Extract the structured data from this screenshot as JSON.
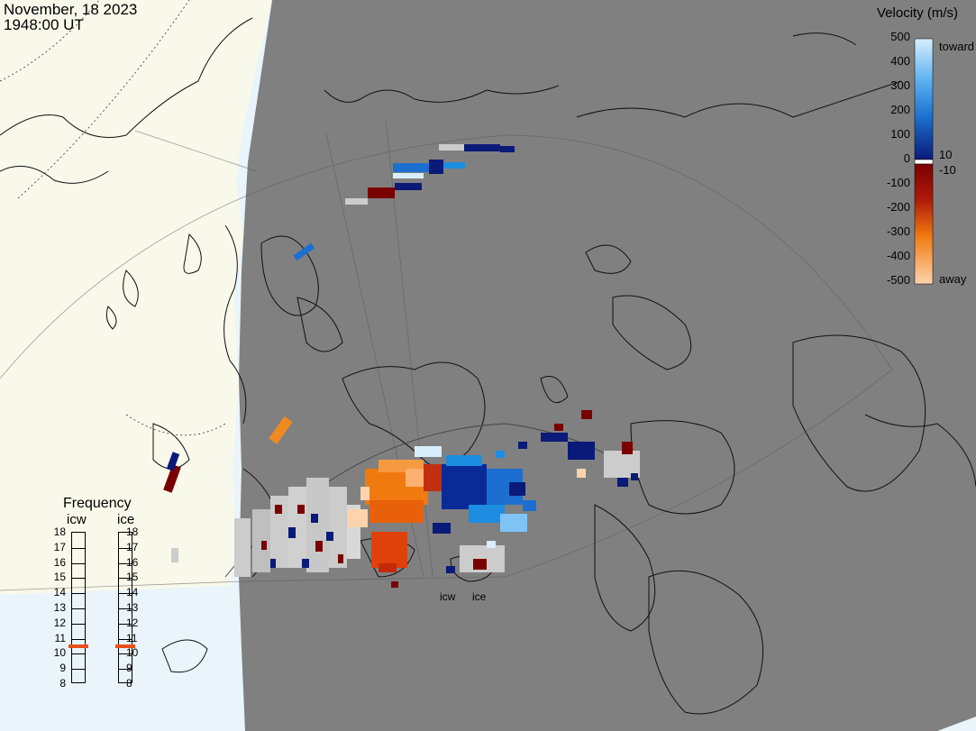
{
  "header": {
    "date": "November, 18 2023",
    "time": "1948:00 UT"
  },
  "legend": {
    "title": "Velocity (m/s)",
    "toward_label": "toward",
    "away_label": "away",
    "ticks": [
      "500",
      "400",
      "300",
      "200",
      "100",
      "0",
      "-100",
      "-200",
      "-300",
      "-400",
      "-500"
    ],
    "inner_pos": "10",
    "inner_neg": "-10",
    "colors": {
      "toward_light": "#d8eefd",
      "toward_mid": "#1c8de0",
      "toward_dark": "#0a1a78",
      "away_dark": "#7a0000",
      "away_mid": "#f07a10",
      "away_light": "#fdd3ad",
      "ground_scatter": "#cccccc"
    }
  },
  "frequency_panel": {
    "title": "Frequency",
    "radars": [
      {
        "name": "icw",
        "selected_mhz": 10.5
      },
      {
        "name": "ice",
        "selected_mhz": 10.5
      }
    ],
    "ticks": [
      "18",
      "17",
      "16",
      "15",
      "14",
      "13",
      "12",
      "11",
      "10",
      "9",
      "8"
    ],
    "marker_color": "#e8501a"
  },
  "map": {
    "night_color": "#808080",
    "day_land_color": "#f8f9ea",
    "ocean_color": "#e9f4fb",
    "radar_labels": [
      "icw",
      "ice"
    ]
  }
}
